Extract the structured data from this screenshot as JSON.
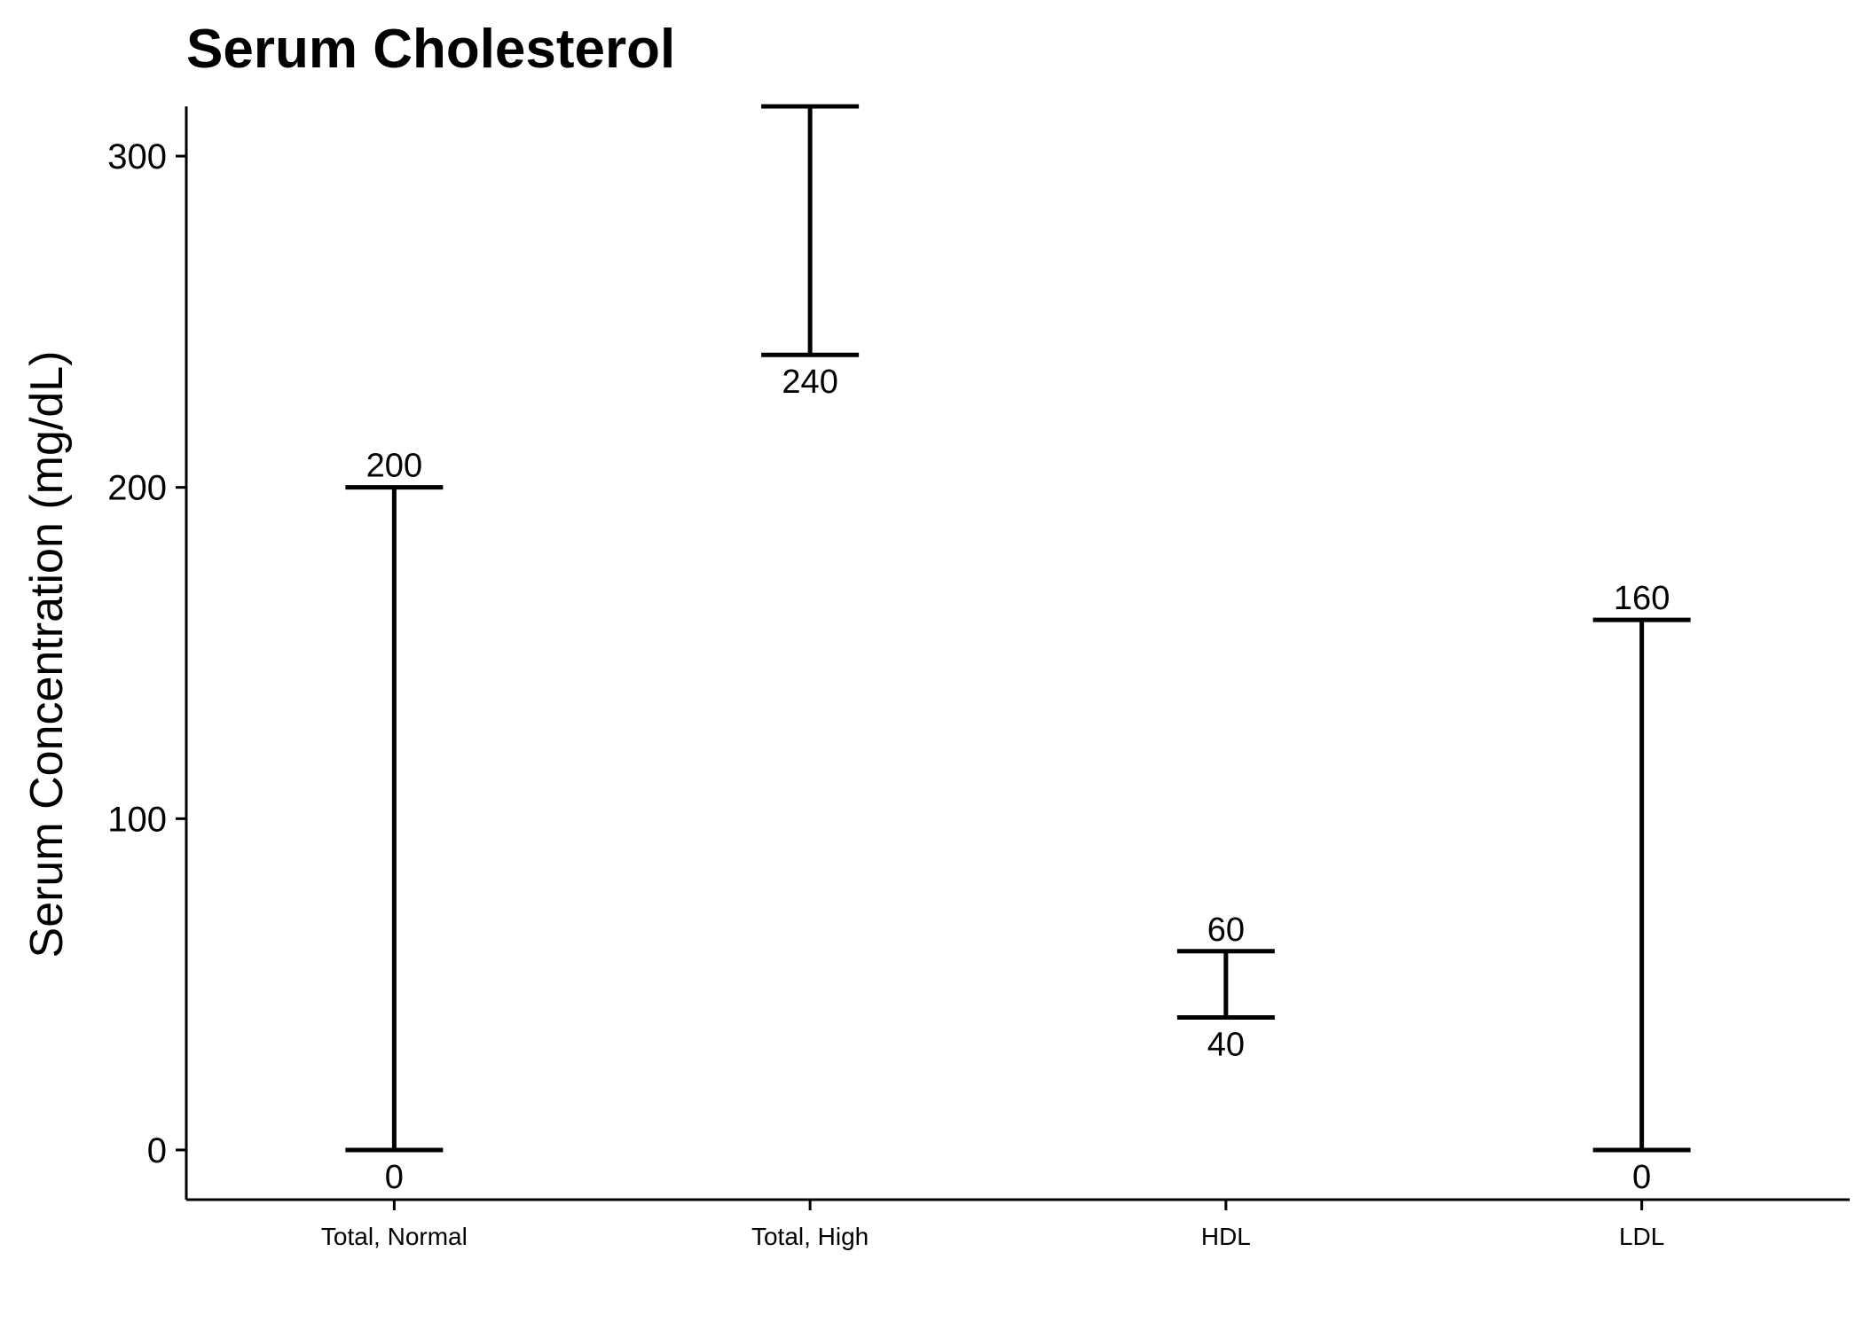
{
  "chart_data": {
    "type": "range",
    "title": "Serum Cholesterol",
    "xlabel": "",
    "ylabel": "Serum Concentration (mg/dL)",
    "categories": [
      "Total, Normal",
      "Total, High",
      "HDL",
      "LDL"
    ],
    "ranges": [
      {
        "category": "Total, Normal",
        "low": 0,
        "high": 200,
        "low_label": "0",
        "high_label": "200"
      },
      {
        "category": "Total, High",
        "low": 240,
        "high": 315,
        "low_label": "240",
        "high_label": ""
      },
      {
        "category": "HDL",
        "low": 40,
        "high": 60,
        "low_label": "40",
        "high_label": "60"
      },
      {
        "category": "LDL",
        "low": 0,
        "high": 160,
        "low_label": "0",
        "high_label": "160"
      }
    ],
    "yticks": [
      0,
      100,
      200,
      300
    ],
    "ytick_labels": [
      "0",
      "100",
      "200",
      "300"
    ],
    "ylim": [
      -15,
      315
    ],
    "grid": false,
    "legend": "none",
    "colors": {
      "line": "#000000",
      "background": "#ffffff"
    }
  }
}
